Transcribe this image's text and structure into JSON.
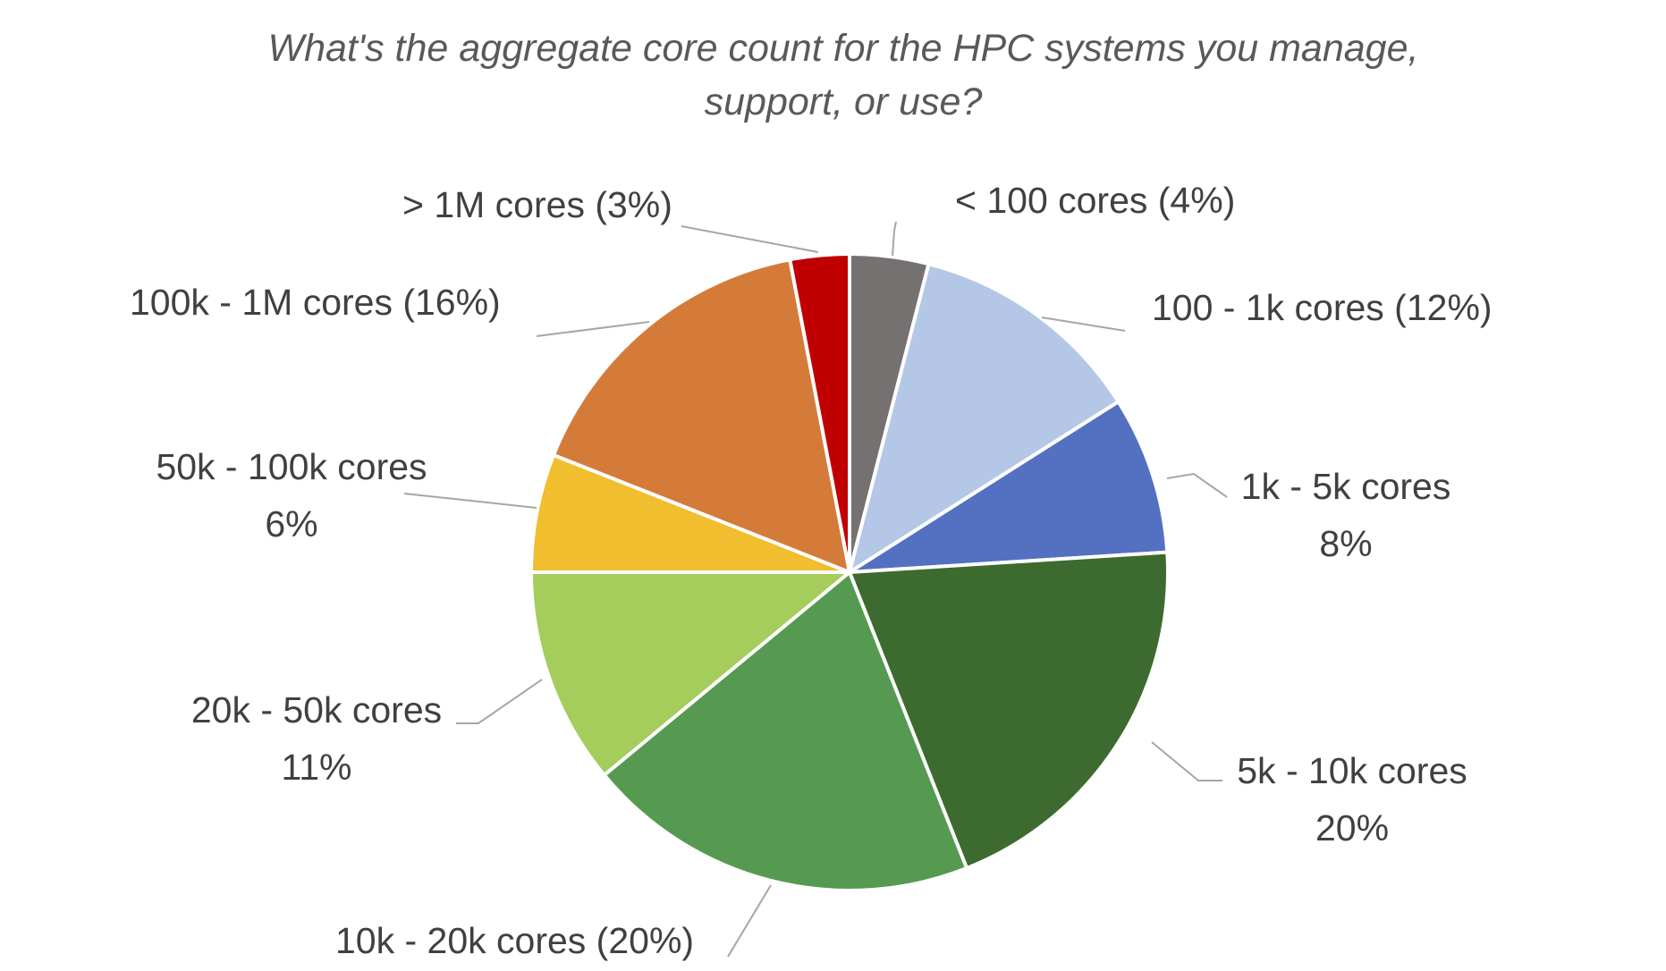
{
  "chart_data": {
    "type": "pie",
    "title_lines": [
      "What's the aggregate core count for the HPC systems you manage,",
      "support, or use?"
    ],
    "slices": [
      {
        "label": "< 100 cores",
        "percent_text": "4%",
        "value": 4,
        "color": "#767171",
        "label_text": [
          "< 100 cores (4%)"
        ]
      },
      {
        "label": "100 - 1k cores",
        "percent_text": "12%",
        "value": 12,
        "color": "#b4c7e7",
        "label_text": [
          "100 - 1k cores (12%)"
        ]
      },
      {
        "label": "1k - 5k cores",
        "percent_text": "8%",
        "value": 8,
        "color": "#5470c1",
        "label_text": [
          "1k - 5k cores",
          "8%"
        ]
      },
      {
        "label": "5k - 10k cores",
        "percent_text": "20%",
        "value": 20,
        "color": "#3d6a2e",
        "label_text": [
          "5k - 10k cores",
          "20%"
        ]
      },
      {
        "label": "10k - 20k cores",
        "percent_text": "20%",
        "value": 20,
        "color": "#559a50",
        "label_text": [
          "10k - 20k cores (20%)"
        ]
      },
      {
        "label": "20k - 50k cores",
        "percent_text": "11%",
        "value": 11,
        "color": "#a4cd5b",
        "label_text": [
          "20k - 50k cores",
          "11%"
        ]
      },
      {
        "label": "50k - 100k cores",
        "percent_text": "6%",
        "value": 6,
        "color": "#f0be2f",
        "label_text": [
          "50k - 100k cores",
          "6%"
        ]
      },
      {
        "label": "100k - 1M cores",
        "percent_text": "16%",
        "value": 16,
        "color": "#d57b3a",
        "label_text": [
          "100k - 1M cores (16%)"
        ]
      },
      {
        "label": "> 1M cores",
        "percent_text": "3%",
        "value": 3,
        "color": "#c00000",
        "label_text": [
          "> 1M cores (3%)"
        ]
      }
    ],
    "start_angle_deg": 0,
    "direction": "clockwise",
    "legend": "none",
    "data_labels": "outside-with-leader-lines"
  }
}
